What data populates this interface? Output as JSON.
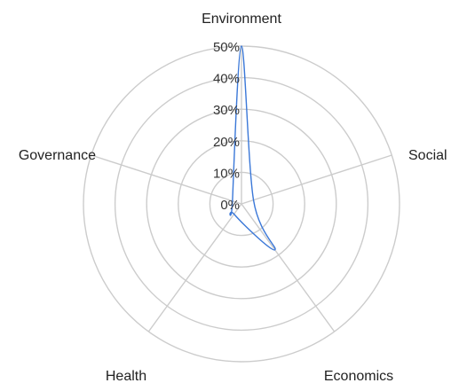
{
  "chart_data": {
    "type": "radar",
    "categories": [
      "Environment",
      "Social",
      "Economics",
      "Health",
      "Governance"
    ],
    "series": [
      {
        "values": [
          50,
          4,
          18,
          4,
          3
        ],
        "color": "#3b78d8"
      }
    ],
    "radial_ticks": [
      "0%",
      "10%",
      "20%",
      "30%",
      "40%",
      "50%"
    ],
    "rmin": 0,
    "rmax": 50,
    "grid": true,
    "curve": "smooth",
    "legend": "none",
    "grid_color": "#cccccc"
  }
}
